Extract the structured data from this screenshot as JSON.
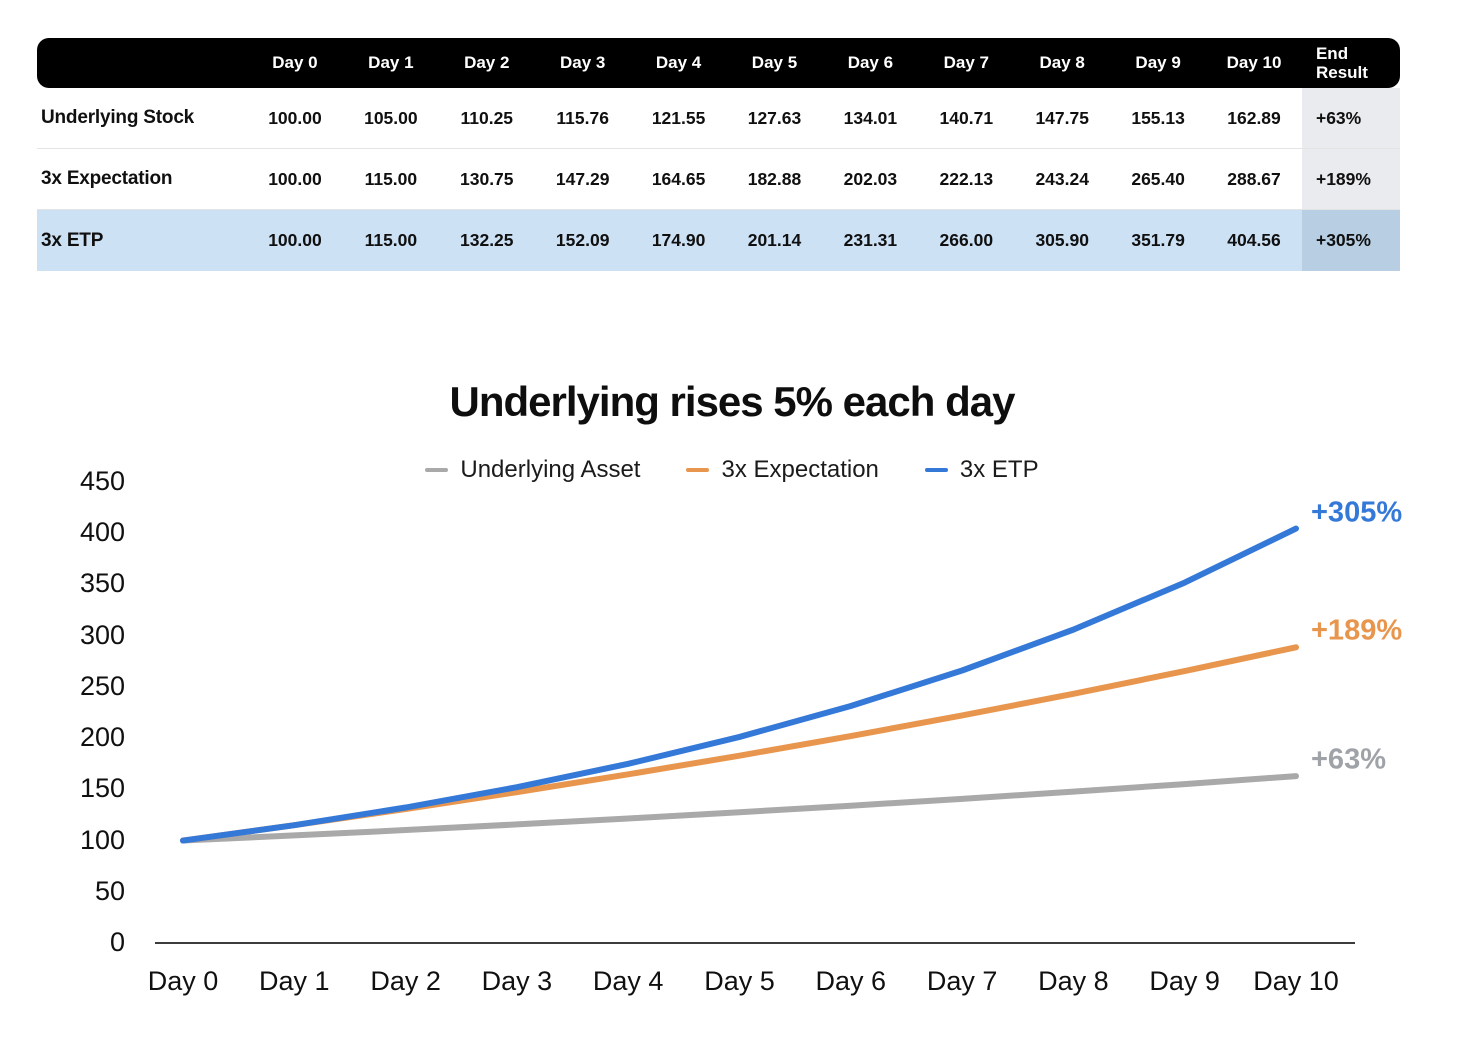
{
  "table": {
    "columns": [
      "",
      "Day 0",
      "Day 1",
      "Day 2",
      "Day 3",
      "Day 4",
      "Day 5",
      "Day 6",
      "Day 7",
      "Day 8",
      "Day 9",
      "Day 10",
      "End Result"
    ],
    "rows": [
      {
        "label": "Underlying Stock",
        "values": [
          "100.00",
          "105.00",
          "110.25",
          "115.76",
          "121.55",
          "127.63",
          "134.01",
          "140.71",
          "147.75",
          "155.13",
          "162.89"
        ],
        "end_result": "+63%",
        "highlight": false
      },
      {
        "label": "3x Expectation",
        "values": [
          "100.00",
          "115.00",
          "130.75",
          "147.29",
          "164.65",
          "182.88",
          "202.03",
          "222.13",
          "243.24",
          "265.40",
          "288.67"
        ],
        "end_result": "+189%",
        "highlight": false
      },
      {
        "label": "3x ETP",
        "values": [
          "100.00",
          "115.00",
          "132.25",
          "152.09",
          "174.90",
          "201.14",
          "231.31",
          "266.00",
          "305.90",
          "351.79",
          "404.56"
        ],
        "end_result": "+305%",
        "highlight": true
      }
    ],
    "colors": {
      "header_bg": "#000000",
      "header_text": "#ffffff",
      "highlight_row_bg": "#cde1f5",
      "end_col_bg": "#e9ebee",
      "end_col_highlight_bg": "#b7cee3",
      "separator": "#e4e4e4"
    }
  },
  "chart_data": {
    "type": "line",
    "title": "Underlying rises 5% each day",
    "categories": [
      "Day 0",
      "Day 1",
      "Day 2",
      "Day 3",
      "Day 4",
      "Day 5",
      "Day 6",
      "Day 7",
      "Day 8",
      "Day 9",
      "Day 10"
    ],
    "xlabel": "",
    "ylabel": "",
    "ylim": [
      0,
      450
    ],
    "y_ticks": [
      0,
      50,
      100,
      150,
      200,
      250,
      300,
      350,
      400,
      450
    ],
    "grid": false,
    "legend_position": "top-center",
    "axis_color": "#3c3c3c",
    "series": [
      {
        "name": "Underlying Asset",
        "color": "#a9a9a9",
        "label_color": "#9fa3a8",
        "values": [
          100.0,
          105.0,
          110.25,
          115.76,
          121.55,
          127.63,
          134.01,
          140.71,
          147.75,
          155.13,
          162.89
        ],
        "end_label": "+63%"
      },
      {
        "name": "3x Expectation",
        "color": "#e8964e",
        "label_color": "#e8964e",
        "values": [
          100.0,
          115.0,
          130.75,
          147.29,
          164.65,
          182.88,
          202.03,
          222.13,
          243.24,
          265.4,
          288.67
        ],
        "end_label": "+189%"
      },
      {
        "name": "3x ETP",
        "color": "#3579d8",
        "label_color": "#3579d8",
        "values": [
          100.0,
          115.0,
          132.25,
          152.09,
          174.9,
          201.14,
          231.31,
          266.0,
          305.9,
          351.79,
          404.56
        ],
        "end_label": "+305%"
      }
    ]
  }
}
